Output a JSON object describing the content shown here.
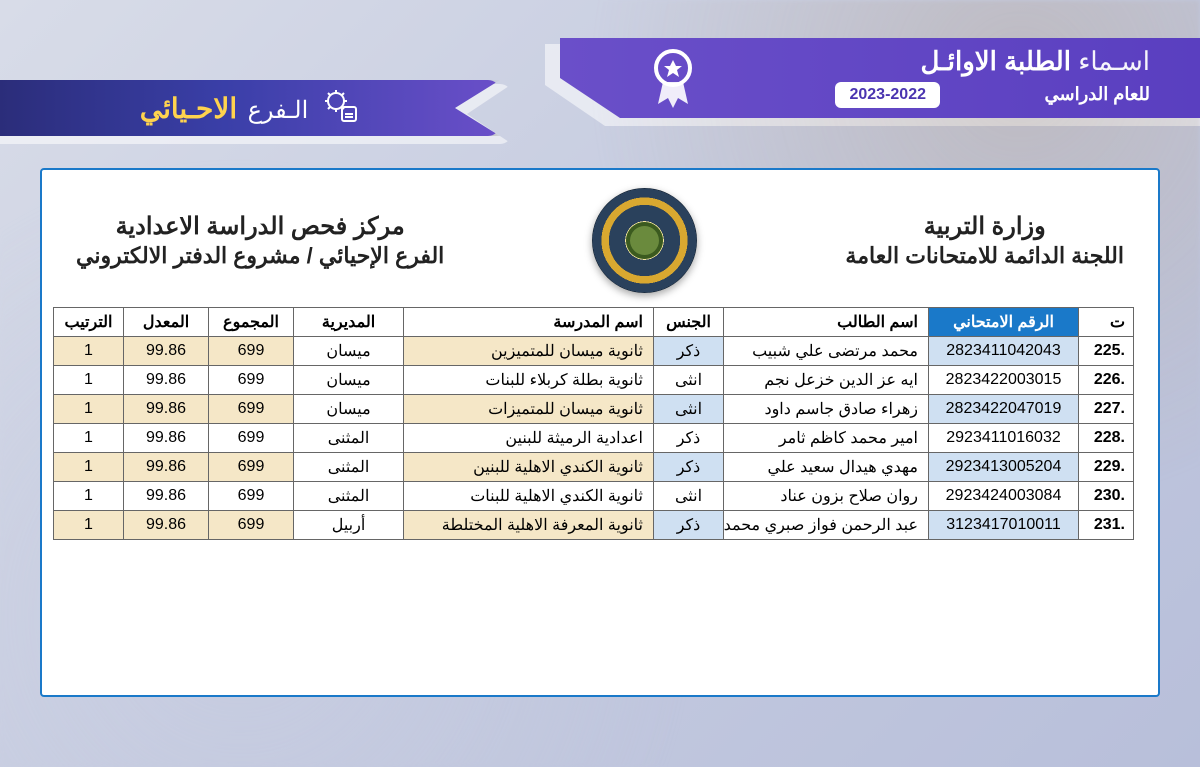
{
  "bannerRight": {
    "light": "اسـماء",
    "bold": "الطلبة الاوائـل",
    "yearLabel": "للعام الدراسي",
    "yearPill": "2023-2022"
  },
  "bannerLeft": {
    "label": "الـفرع",
    "name": "الاحـيائي"
  },
  "header": {
    "rightLine1": "وزارة التربية",
    "rightLine2": "اللجنة الدائمة للامتحانات العامة",
    "leftLine1": "مركز فحص  الدراسة الاعدادية",
    "leftLine2": "الفرع الإحيائي / مشروع الدفتر الالكتروني"
  },
  "table": {
    "columns": {
      "idx": "ت",
      "exam": "الرقم الامتحاني",
      "name": "اسم الطالب",
      "gender": "الجنس",
      "school": "اسم المدرسة",
      "dir": "المديرية",
      "sum": "المجموع",
      "avg": "المعدل",
      "rank": "الترتيب"
    },
    "widths": {
      "idx": 55,
      "exam": 150,
      "name": 205,
      "gender": 70,
      "school": 250,
      "dir": 110,
      "sum": 85,
      "avg": 85,
      "rank": 70
    },
    "rows": [
      {
        "idx": ".225",
        "exam": "2823411042043",
        "name": "محمد مرتضى علي شبيب",
        "gender": "ذكر",
        "school": "ثانوية ميسان للمتميزين",
        "dir": "ميسان",
        "sum": "699",
        "avg": "99.86",
        "rank": "1"
      },
      {
        "idx": ".226",
        "exam": "2823422003015",
        "name": "ايه عز الدين خزعل نجم",
        "gender": "انثى",
        "school": "ثانوية بطلة كربلاء للبنات",
        "dir": "ميسان",
        "sum": "699",
        "avg": "99.86",
        "rank": "1"
      },
      {
        "idx": ".227",
        "exam": "2823422047019",
        "name": "زهراء صادق جاسم داود",
        "gender": "انثى",
        "school": "ثانوية ميسان للمتميزات",
        "dir": "ميسان",
        "sum": "699",
        "avg": "99.86",
        "rank": "1"
      },
      {
        "idx": ".228",
        "exam": "2923411016032",
        "name": "امير محمد كاظم ثامر",
        "gender": "ذكر",
        "school": "اعدادية الرميثة للبنين",
        "dir": "المثنى",
        "sum": "699",
        "avg": "99.86",
        "rank": "1"
      },
      {
        "idx": ".229",
        "exam": "2923413005204",
        "name": "مهدي هيدال سعيد علي",
        "gender": "ذكر",
        "school": "ثانوية الكندي الاهلية للبنين",
        "dir": "المثنى",
        "sum": "699",
        "avg": "99.86",
        "rank": "1"
      },
      {
        "idx": ".230",
        "exam": "2923424003084",
        "name": "روان صلاح بزون عناد",
        "gender": "انثى",
        "school": "ثانوية الكندي الاهلية للبنات",
        "dir": "المثنى",
        "sum": "699",
        "avg": "99.86",
        "rank": "1"
      },
      {
        "idx": ".231",
        "exam": "3123417010011",
        "name": "عبد الرحمن فواز صبري محمد",
        "gender": "ذكر",
        "school": "ثانوية المعرفة الاهلية المختلطة",
        "dir": "أربيل",
        "sum": "699",
        "avg": "99.86",
        "rank": "1"
      }
    ]
  },
  "colors": {
    "bannerPurple": "#5a3fc0",
    "bannerDark": "#2b2d7a",
    "accentYellow": "#ffd34e",
    "headerBlue": "#1a79c9",
    "stripeBlue": "#cfe0f2",
    "stripeBeige": "#f5e7c7"
  }
}
